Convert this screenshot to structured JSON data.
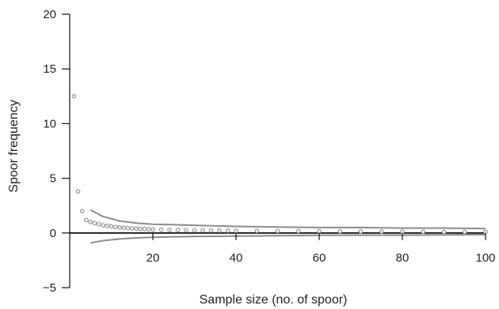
{
  "chart_data": {
    "type": "scatter",
    "xlabel": "Sample size (no. of spoor)",
    "ylabel": "Spoor frequency",
    "xlim": [
      0,
      100
    ],
    "ylim": [
      -5,
      20
    ],
    "x_ticks": [
      20,
      40,
      60,
      80,
      100
    ],
    "y_ticks": [
      -5,
      0,
      5,
      10,
      15,
      20
    ],
    "y_tick_labels": [
      "−5",
      "0",
      "5",
      "10",
      "15",
      "20"
    ],
    "grid": false,
    "legend": "none",
    "colors": {
      "points": "#9a9a9a",
      "bands": "#8c8c8c",
      "axis": "#111111",
      "zero_line": "#111111"
    },
    "series": [
      {
        "kind": "points",
        "x": [
          1,
          2,
          3,
          4,
          5,
          6,
          7,
          8,
          9,
          10,
          11,
          12,
          13,
          14,
          15,
          16,
          17,
          18,
          19,
          20,
          22,
          24,
          26,
          28,
          30,
          32,
          34,
          36,
          38,
          40,
          45,
          50,
          55,
          60,
          65,
          70,
          75,
          80,
          85,
          90,
          95,
          100
        ],
        "y": [
          12.5,
          3.8,
          2.0,
          1.2,
          1.0,
          0.9,
          0.8,
          0.7,
          0.65,
          0.6,
          0.55,
          0.5,
          0.48,
          0.45,
          0.42,
          0.4,
          0.38,
          0.36,
          0.34,
          0.32,
          0.3,
          0.28,
          0.27,
          0.26,
          0.25,
          0.24,
          0.23,
          0.22,
          0.21,
          0.2,
          0.19,
          0.18,
          0.17,
          0.16,
          0.15,
          0.14,
          0.13,
          0.12,
          0.11,
          0.1,
          0.1,
          0.1
        ]
      },
      {
        "kind": "upper-band",
        "x": [
          5,
          8,
          12,
          16,
          20,
          25,
          30,
          40,
          50,
          60,
          70,
          80,
          90,
          100
        ],
        "y": [
          2.1,
          1.5,
          1.1,
          0.9,
          0.8,
          0.75,
          0.7,
          0.6,
          0.55,
          0.5,
          0.5,
          0.45,
          0.45,
          0.4
        ]
      },
      {
        "kind": "lower-band",
        "x": [
          5,
          8,
          12,
          16,
          20,
          25,
          30,
          40,
          50,
          60,
          70,
          80,
          90,
          100
        ],
        "y": [
          -0.9,
          -0.7,
          -0.55,
          -0.45,
          -0.4,
          -0.35,
          -0.32,
          -0.28,
          -0.25,
          -0.22,
          -0.2,
          -0.2,
          -0.18,
          -0.15
        ]
      }
    ]
  }
}
